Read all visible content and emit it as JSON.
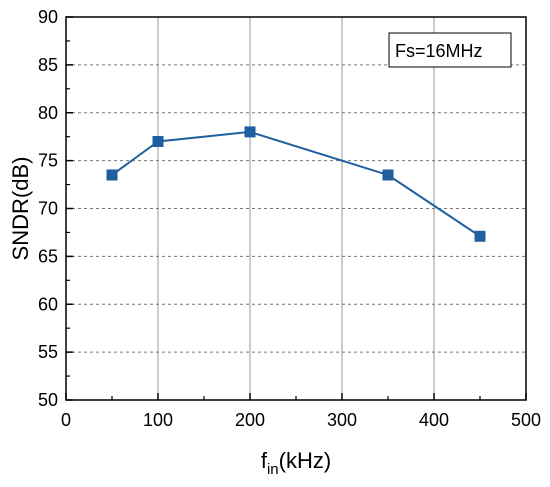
{
  "chart_data": {
    "type": "line",
    "xlabel_main": "f",
    "xlabel_sub": "in",
    "xlabel_unit": "(kHz)",
    "ylabel": "SNDR(dB)",
    "annotation": "Fs=16MHz",
    "xlim": [
      0,
      500
    ],
    "ylim": [
      50,
      90
    ],
    "xticks": [
      0,
      100,
      200,
      300,
      400,
      500
    ],
    "yticks": [
      50,
      55,
      60,
      65,
      70,
      75,
      80,
      85,
      90
    ],
    "grid": {
      "x": "solid-gray",
      "y": "dashed-gray"
    },
    "series": [
      {
        "x": [
          50,
          100,
          200,
          350,
          450
        ],
        "y": [
          73.5,
          77.0,
          78.0,
          73.5,
          67.1
        ],
        "marker": "square",
        "color": "#1f5fa0"
      }
    ]
  }
}
